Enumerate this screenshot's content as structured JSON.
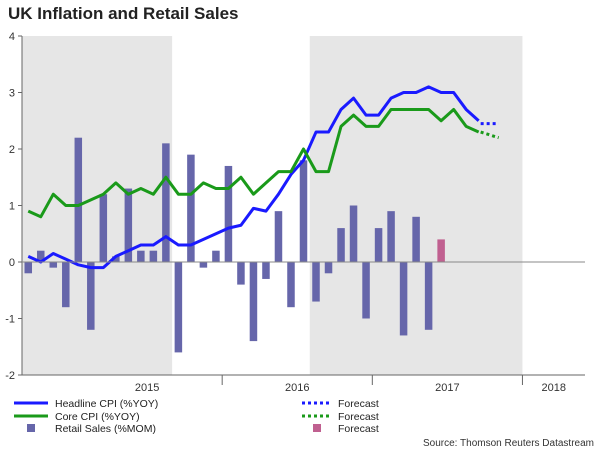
{
  "chart_data": {
    "type": "bar+line",
    "title": "UK Inflation and Retail Sales",
    "source": "Source: Thomson Reuters Datastream",
    "ylim": [
      -2,
      4
    ],
    "yticks": [
      "4",
      "3",
      "2",
      "1",
      "0",
      "-1",
      "-2"
    ],
    "ytick_values": [
      4,
      3,
      2,
      1,
      0,
      -1,
      -2
    ],
    "year_labels": [
      "2015",
      "2016",
      "2017",
      "2018"
    ],
    "months": [
      "2014-09",
      "2014-10",
      "2014-11",
      "2014-12",
      "2015-01",
      "2015-02",
      "2015-03",
      "2015-04",
      "2015-05",
      "2015-06",
      "2015-07",
      "2015-08",
      "2015-09",
      "2015-10",
      "2015-11",
      "2015-12",
      "2016-01",
      "2016-02",
      "2016-03",
      "2016-04",
      "2016-05",
      "2016-06",
      "2016-07",
      "2016-08",
      "2016-09",
      "2016-10",
      "2016-11",
      "2016-12",
      "2017-01",
      "2017-02",
      "2017-03",
      "2017-04",
      "2017-05",
      "2017-06",
      "2017-07",
      "2017-08",
      "2017-09",
      "2017-10",
      "2017-11",
      "2017-12",
      "2018-01",
      "2018-02",
      "2018-03",
      "2018-04",
      "2018-05"
    ],
    "shaded_periods": [
      [
        "2014-09",
        "2015-08"
      ],
      [
        "2016-08",
        "2017-12"
      ]
    ],
    "series": [
      {
        "name": "Headline CPI (%YOY)",
        "kind": "line",
        "color": "#1a1aff",
        "values": [
          0.1,
          0.0,
          0.15,
          0.05,
          -0.05,
          -0.1,
          -0.1,
          0.1,
          0.2,
          0.3,
          0.3,
          0.45,
          0.3,
          0.3,
          0.4,
          0.5,
          0.6,
          0.65,
          0.95,
          0.9,
          1.2,
          1.55,
          1.8,
          2.3,
          2.3,
          2.7,
          2.9,
          2.6,
          2.6,
          2.9,
          3.0,
          3.0,
          3.1,
          3.0,
          3.0,
          2.7,
          2.5,
          null,
          null,
          null,
          null,
          null,
          null,
          null,
          null
        ]
      },
      {
        "name": "Core CPI (%YOY)",
        "kind": "line",
        "color": "#1a9a1a",
        "values": [
          0.9,
          0.8,
          1.2,
          1.0,
          1.0,
          1.1,
          1.2,
          1.4,
          1.2,
          1.3,
          1.2,
          1.5,
          1.2,
          1.2,
          1.4,
          1.3,
          1.3,
          1.5,
          1.2,
          1.4,
          1.6,
          1.6,
          2.0,
          1.6,
          1.6,
          2.4,
          2.6,
          2.4,
          2.4,
          2.7,
          2.7,
          2.7,
          2.7,
          2.5,
          2.7,
          2.4,
          2.3,
          null,
          null,
          null,
          null,
          null,
          null,
          null,
          null
        ]
      },
      {
        "name": "Retail Sales (%MOM)",
        "kind": "bar",
        "color": "#6666aa",
        "values": [
          -0.2,
          0.2,
          -0.1,
          -0.8,
          2.2,
          -1.2,
          1.2,
          0.1,
          1.3,
          0.2,
          0.2,
          2.1,
          -1.6,
          1.9,
          -0.1,
          0.2,
          1.7,
          -0.4,
          -1.4,
          -0.3,
          0.9,
          -0.8,
          1.8,
          -0.7,
          -0.2,
          0.6,
          1.0,
          -1.0,
          0.6,
          0.9,
          -1.3,
          0.8,
          -1.2,
          null,
          null,
          null,
          null,
          null,
          null,
          null,
          null,
          null,
          null,
          null,
          null
        ]
      }
    ],
    "forecasts": [
      {
        "name": "Forecast",
        "kind": "dotted-line",
        "color": "#1a1aff",
        "from": 2.45,
        "to": 2.45
      },
      {
        "name": "Forecast",
        "kind": "dotted-line",
        "color": "#1a9a1a",
        "from": 2.3,
        "to": 2.2
      },
      {
        "name": "Forecast",
        "kind": "bar",
        "color": "#c06090",
        "value": 0.4
      }
    ]
  },
  "legend": {
    "headline": "Headline CPI (%YOY)",
    "core": "Core CPI (%YOY)",
    "retail": "Retail Sales (%MOM)",
    "f1": "Forecast",
    "f2": "Forecast",
    "f3": "Forecast"
  }
}
